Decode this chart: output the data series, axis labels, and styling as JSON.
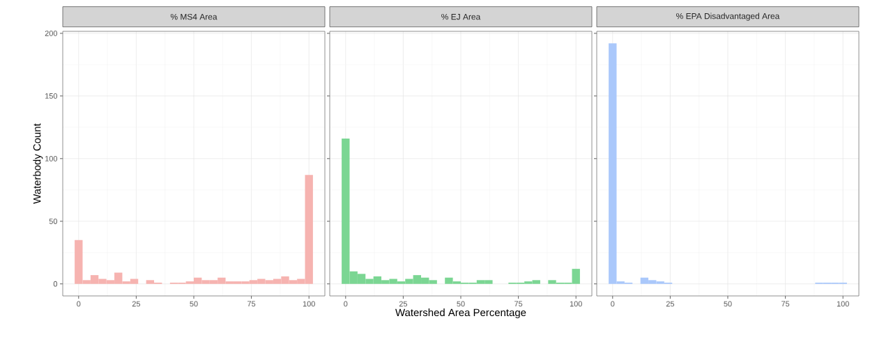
{
  "chart_data": [
    {
      "type": "histogram",
      "title": "% MS4 Area",
      "ylabel": "Waterbody Count",
      "color": "#f6b3b0",
      "bins": [
        -1.724,
        1.724,
        5.172,
        8.621,
        12.069,
        15.517,
        18.966,
        22.414,
        25.862,
        29.31,
        32.759,
        36.207,
        39.655,
        43.103,
        46.552,
        50,
        53.448,
        56.897,
        60.345,
        63.793,
        67.241,
        70.69,
        74.138,
        77.586,
        81.034,
        84.483,
        87.931,
        91.379,
        94.828,
        98.276,
        101.724
      ],
      "values": [
        35,
        3,
        7,
        4,
        3,
        9,
        2,
        4,
        0,
        3,
        1,
        0,
        1,
        1,
        2,
        5,
        3,
        3,
        5,
        2,
        2,
        2,
        3,
        4,
        3,
        4,
        6,
        3,
        4,
        87
      ],
      "xlim": [
        -6.9,
        106.9
      ],
      "xticks": [
        0,
        25,
        50,
        75,
        100
      ],
      "ylim": [
        -9.6,
        201.6
      ],
      "yticks": [
        0,
        50,
        100,
        150,
        200
      ],
      "grid": true
    },
    {
      "type": "histogram",
      "title": "% EJ Area",
      "xlabel": "Watershed Area Percentage",
      "color": "#7bd693",
      "bins": [
        -1.724,
        1.724,
        5.172,
        8.621,
        12.069,
        15.517,
        18.966,
        22.414,
        25.862,
        29.31,
        32.759,
        36.207,
        39.655,
        43.103,
        46.552,
        50,
        53.448,
        56.897,
        60.345,
        63.793,
        67.241,
        70.69,
        74.138,
        77.586,
        81.034,
        84.483,
        87.931,
        91.379,
        94.828,
        98.276,
        101.724
      ],
      "values": [
        116,
        10,
        8,
        4,
        6,
        3,
        4,
        2,
        4,
        7,
        5,
        3,
        0,
        5,
        2,
        1,
        1,
        3,
        3,
        0,
        0,
        1,
        1,
        2,
        3,
        0,
        3,
        1,
        1,
        12
      ],
      "xlim": [
        -6.9,
        106.9
      ],
      "xticks": [
        0,
        25,
        50,
        75,
        100
      ],
      "ylim": [
        -9.6,
        201.6
      ],
      "yticks": [
        0,
        50,
        100,
        150,
        200
      ],
      "grid": true,
      "tick_labels": "x"
    },
    {
      "type": "histogram",
      "title": "% EPA Disadvantaged Area",
      "color": "#aac8fb",
      "bins": [
        -1.724,
        1.724,
        5.172,
        8.621,
        12.069,
        15.517,
        18.966,
        22.414,
        25.862,
        29.31,
        32.759,
        36.207,
        39.655,
        43.103,
        46.552,
        50,
        53.448,
        56.897,
        60.345,
        63.793,
        67.241,
        70.69,
        74.138,
        77.586,
        81.034,
        84.483,
        87.931,
        91.379,
        94.828,
        98.276,
        101.724
      ],
      "values": [
        192,
        2,
        1,
        0,
        5,
        3,
        2,
        1,
        0,
        0,
        0,
        0,
        0,
        0,
        0,
        0,
        0,
        0,
        0,
        0,
        0,
        0,
        0,
        0,
        0,
        0,
        1,
        1,
        1,
        1
      ],
      "xlim": [
        -6.9,
        106.9
      ],
      "xticks": [
        0,
        25,
        50,
        75,
        100
      ],
      "ylim": [
        -9.6,
        201.6
      ],
      "yticks": [
        0,
        50,
        100,
        150,
        200
      ],
      "grid": true,
      "tick_labels": "x"
    }
  ]
}
